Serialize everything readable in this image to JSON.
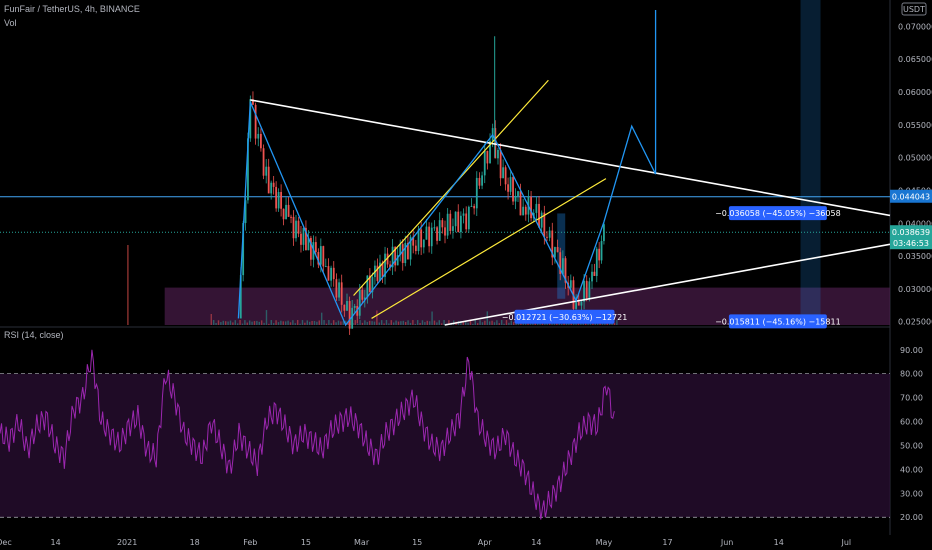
{
  "header": {
    "symbol_line": "FunFair / TetherUS, 4h, BINANCE",
    "volume_label": "Vol",
    "rsi_label": "RSI (14, close)",
    "currency_badge": "USDT"
  },
  "colors": {
    "background": "#000000",
    "candle_up": "#26a69a",
    "candle_down": "#ef5350",
    "trendline_white": "#ffffff",
    "channel_yellow": "#ffeb3b",
    "zigzag_blue": "#2196f3",
    "support_zone": "#4a1c4a",
    "rsi_line": "#9c27b0",
    "rsi_band": "#2a0f33",
    "price_tag_green": "#26a69a",
    "price_tag_blue": "#2962ff",
    "measure_box": "#1e88e5"
  },
  "price_axis": {
    "ticks": [
      "0.070000",
      "0.065000",
      "0.060000",
      "0.055000",
      "0.050000",
      "0.045000",
      "0.040000",
      "0.035000",
      "0.030000",
      "0.025000"
    ],
    "current_price": "0.038639",
    "countdown": "03:46:53",
    "horizontal_level": "0.044043"
  },
  "rsi_axis": {
    "ticks": [
      "90.00",
      "80.00",
      "70.00",
      "60.00",
      "50.00",
      "40.00",
      "30.00",
      "20.00"
    ]
  },
  "time_axis": {
    "ticks": [
      "Dec",
      "14",
      "2021",
      "18",
      "Feb",
      "15",
      "Mar",
      "15",
      "Apr",
      "14",
      "May",
      "17",
      "Jun",
      "14",
      "Jul"
    ]
  },
  "measurements": [
    {
      "text": "−0.012721 (−30.63%) −12721"
    },
    {
      "text": "−0.036058 (−45.05%) −36058"
    },
    {
      "text": "−0.015811 (−45.16%) −15811"
    }
  ],
  "chart_data": {
    "type": "candlestick",
    "symbol": "FunFair / TetherUS",
    "interval": "4h",
    "exchange": "BINANCE",
    "price_range": [
      0.0245,
      0.0725
    ],
    "rsi_range": [
      18,
      92
    ],
    "rsi_levels": [
      80,
      20
    ],
    "grid": false,
    "approx_close_path": [
      {
        "date": "2021-01-29",
        "price": 0.0255
      },
      {
        "date": "2021-02-01",
        "price": 0.0585
      },
      {
        "date": "2021-02-05",
        "price": 0.047
      },
      {
        "date": "2021-02-10",
        "price": 0.041
      },
      {
        "date": "2021-02-15",
        "price": 0.037
      },
      {
        "date": "2021-02-20",
        "price": 0.034
      },
      {
        "date": "2021-02-26",
        "price": 0.0255
      },
      {
        "date": "2021-03-05",
        "price": 0.033
      },
      {
        "date": "2021-03-12",
        "price": 0.036
      },
      {
        "date": "2021-03-20",
        "price": 0.039
      },
      {
        "date": "2021-03-28",
        "price": 0.041
      },
      {
        "date": "2021-04-03",
        "price": 0.0535
      },
      {
        "date": "2021-04-05",
        "price": 0.0475
      },
      {
        "date": "2021-04-10",
        "price": 0.043
      },
      {
        "date": "2021-04-14",
        "price": 0.0415
      },
      {
        "date": "2021-04-20",
        "price": 0.034
      },
      {
        "date": "2021-04-24",
        "price": 0.0275
      },
      {
        "date": "2021-04-28",
        "price": 0.0315
      },
      {
        "date": "2021-05-01",
        "price": 0.0386
      }
    ],
    "rsi_values": [
      55,
      52,
      60,
      48,
      58,
      62,
      50,
      45,
      65,
      70,
      88,
      60,
      55,
      50,
      58,
      62,
      48,
      45,
      80,
      70,
      55,
      50,
      45,
      60,
      50,
      40,
      55,
      48,
      42,
      60,
      65,
      58,
      50,
      55,
      52,
      48,
      56,
      60,
      62,
      58,
      50,
      45,
      55,
      60,
      65,
      70,
      58,
      50,
      48,
      55,
      62,
      86,
      60,
      52,
      48,
      55,
      45,
      40,
      30,
      22,
      28,
      35,
      45,
      55,
      60,
      58,
      76,
      56
    ]
  }
}
